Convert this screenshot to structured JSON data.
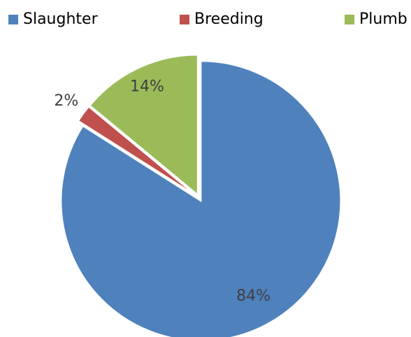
{
  "chart_data": {
    "type": "pie",
    "categories": [
      "Slaughter",
      "Breeding",
      "Plumb"
    ],
    "values": [
      84,
      2,
      14
    ],
    "value_labels": [
      "84%",
      "2%",
      "14%"
    ],
    "colors": [
      "#4f81bd",
      "#c0504d",
      "#9bbb59"
    ],
    "legend": "top"
  }
}
